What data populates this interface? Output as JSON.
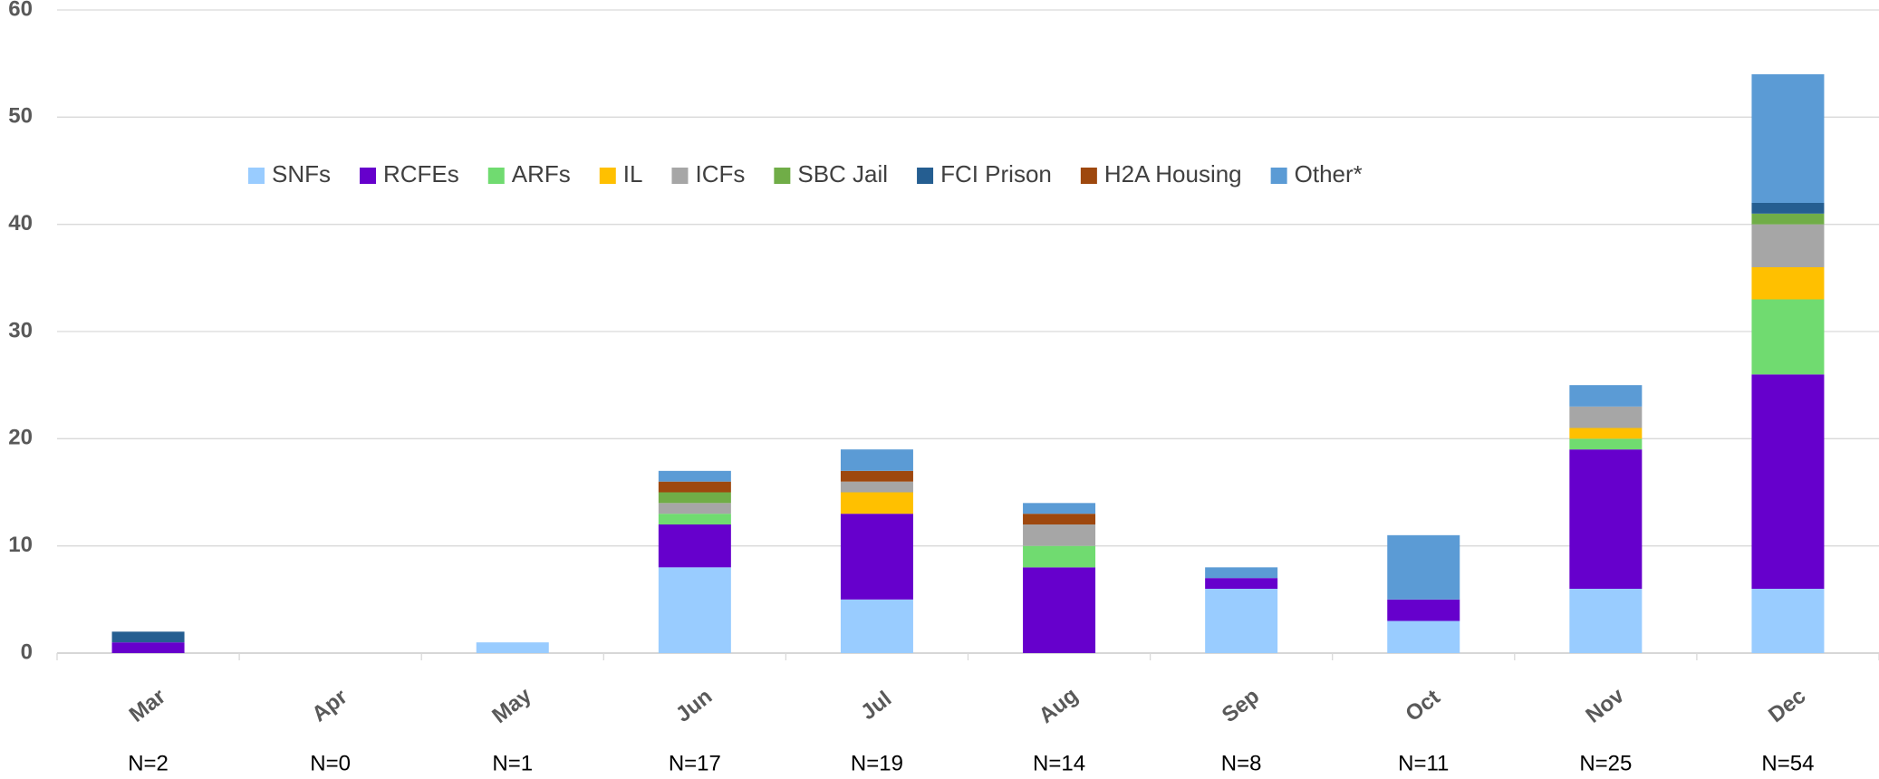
{
  "chart_data": {
    "type": "stacked_bar",
    "categories": [
      "Mar",
      "Apr",
      "May",
      "Jun",
      "Jul",
      "Aug",
      "Sep",
      "Oct",
      "Nov",
      "Dec"
    ],
    "n_labels": [
      "N=2",
      "N=0",
      "N=1",
      "N=17",
      "N=19",
      "N=14",
      "N=8",
      "N=11",
      "N=25",
      "N=54"
    ],
    "series": [
      {
        "name": "SNFs",
        "color": "#99ccff",
        "values": [
          0,
          0,
          1,
          8,
          5,
          0,
          6,
          3,
          6,
          6
        ]
      },
      {
        "name": "RCFEs",
        "color": "#6600cc",
        "values": [
          1,
          0,
          0,
          4,
          8,
          8,
          1,
          2,
          13,
          20
        ]
      },
      {
        "name": "ARFs",
        "color": "#70db70",
        "values": [
          0,
          0,
          0,
          1,
          0,
          2,
          0,
          0,
          1,
          7
        ]
      },
      {
        "name": "IL",
        "color": "#ffc000",
        "values": [
          0,
          0,
          0,
          0,
          2,
          0,
          0,
          0,
          1,
          3
        ]
      },
      {
        "name": "ICFs",
        "color": "#a6a6a6",
        "values": [
          0,
          0,
          0,
          1,
          1,
          2,
          0,
          0,
          2,
          4
        ]
      },
      {
        "name": "SBC Jail",
        "color": "#70ad47",
        "values": [
          0,
          0,
          0,
          1,
          0,
          0,
          0,
          0,
          0,
          1
        ]
      },
      {
        "name": "FCI Prison",
        "color": "#255e91",
        "values": [
          1,
          0,
          0,
          0,
          0,
          0,
          0,
          0,
          0,
          1
        ]
      },
      {
        "name": "H2A Housing",
        "color": "#9e480e",
        "values": [
          0,
          0,
          0,
          1,
          1,
          1,
          0,
          0,
          0,
          0
        ]
      },
      {
        "name": "Other*",
        "color": "#5b9bd5",
        "values": [
          0,
          0,
          0,
          1,
          2,
          1,
          1,
          6,
          2,
          12
        ]
      }
    ],
    "ylim": [
      0,
      60
    ],
    "yticks": [
      0,
      10,
      20,
      30,
      40,
      50,
      60
    ],
    "grid": true,
    "legend": "top"
  }
}
